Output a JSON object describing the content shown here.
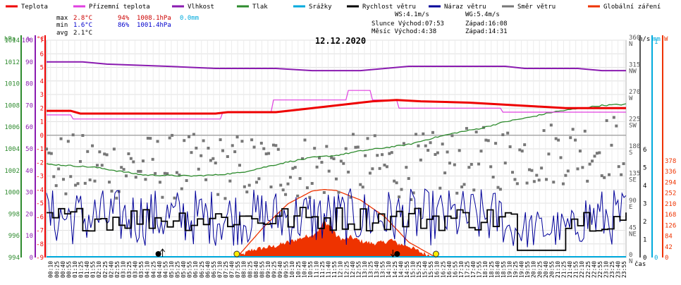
{
  "chart_data": {
    "type": "line",
    "title": "12.12.2020",
    "xlabel": "čas",
    "legend": [
      {
        "name": "Teplota",
        "color": "#ee0000"
      },
      {
        "name": "Přízemní teplota",
        "color": "#e040e0"
      },
      {
        "name": "Vlhkost",
        "color": "#8a1bb0"
      },
      {
        "name": "Tlak",
        "color": "#2e8b2e"
      },
      {
        "name": "Srážky",
        "color": "#00aadd"
      },
      {
        "name": "Rychlost větru",
        "color": "#000000"
      },
      {
        "name": "Náraz větru",
        "color": "#000099"
      },
      {
        "name": "Směr větru",
        "color": "#777777"
      },
      {
        "name": "Globální záření",
        "color": "#ee3300"
      }
    ],
    "stats": {
      "max": {
        "label": "max",
        "temp": "2.8°C",
        "hum": "94%",
        "press": "1008.1hPa",
        "rain": "0.0mm"
      },
      "min": {
        "label": "min",
        "temp": "1.6°C",
        "hum": "86%",
        "press": "1001.4hPa"
      },
      "avg": {
        "label": "avg",
        "temp": "2.1°C"
      }
    },
    "info": {
      "ws": "WS:4.1m/s",
      "wg": "WG:5.4m/s",
      "sun": "Slunce Východ:07:53",
      "sunset": "Západ:16:08",
      "moon": "Měsíc  Východ:4:38",
      "moonset": "Západ:14:31"
    },
    "axes": {
      "pressure": {
        "unit": "hPa",
        "ticks": [
          994,
          996,
          998,
          1000,
          1002,
          1004,
          1006,
          1008,
          1010,
          1012,
          1014
        ]
      },
      "humidity": {
        "unit": "%",
        "ticks": [
          0,
          10,
          20,
          30,
          40,
          50,
          60,
          70,
          80,
          90,
          100
        ]
      },
      "temperature": {
        "unit": "°C",
        "ticks": [
          -9,
          -8,
          -7,
          -6,
          -5,
          -4,
          -3,
          -2,
          -1,
          0,
          1,
          2,
          3,
          4,
          5,
          6,
          7
        ]
      },
      "direction": {
        "unit": "",
        "ticks": [
          {
            "v": 0,
            "t": "0",
            "l": "N"
          },
          {
            "v": 45,
            "t": "45",
            "l": "NE"
          },
          {
            "v": 90,
            "t": "90",
            "l": "E"
          },
          {
            "v": 135,
            "t": "135",
            "l": "SE"
          },
          {
            "v": 180,
            "t": "180",
            "l": "S"
          },
          {
            "v": 225,
            "t": "225",
            "l": "SW"
          },
          {
            "v": 270,
            "t": "270",
            "l": "W"
          },
          {
            "v": 315,
            "t": "315",
            "l": "NW"
          },
          {
            "v": 360,
            "t": "360",
            "l": "N"
          }
        ]
      },
      "wind": {
        "unit": "m/s",
        "ticks": [
          0,
          1,
          2,
          3,
          4,
          5,
          6
        ]
      },
      "rain": {
        "unit": "mm",
        "ticks": [
          0,
          1
        ]
      },
      "radiation": {
        "unit": "W",
        "ticks": [
          0,
          42,
          84,
          126,
          168,
          210,
          252,
          294,
          336,
          378
        ]
      }
    },
    "x_ticks": [
      "00:10",
      "00:25",
      "00:40",
      "00:55",
      "01:10",
      "01:25",
      "01:40",
      "01:55",
      "02:10",
      "02:25",
      "02:40",
      "02:55",
      "03:10",
      "03:25",
      "03:40",
      "03:55",
      "04:10",
      "04:25",
      "04:40",
      "04:55",
      "05:10",
      "05:25",
      "05:40",
      "05:55",
      "06:10",
      "06:25",
      "06:40",
      "06:55",
      "07:10",
      "07:25",
      "07:40",
      "07:55",
      "08:10",
      "08:25",
      "08:40",
      "08:55",
      "09:10",
      "09:25",
      "09:40",
      "09:55",
      "10:10",
      "10:25",
      "10:40",
      "10:55",
      "11:10",
      "11:25",
      "11:40",
      "11:55",
      "12:10",
      "12:25",
      "12:40",
      "12:55",
      "13:10",
      "13:25",
      "13:40",
      "13:55",
      "14:10",
      "14:25",
      "14:40",
      "14:55",
      "15:10",
      "15:25",
      "15:40",
      "15:55",
      "16:10",
      "16:25",
      "16:40",
      "16:55",
      "17:10",
      "17:25",
      "17:40",
      "17:55",
      "18:10",
      "18:25",
      "18:40",
      "18:55",
      "19:10",
      "19:25",
      "19:40",
      "19:55",
      "20:10",
      "20:25",
      "20:40",
      "20:55",
      "21:10",
      "21:25",
      "21:40",
      "21:55",
      "22:10",
      "22:25",
      "22:40",
      "22:55",
      "23:10",
      "23:25",
      "23:40",
      "23:55"
    ],
    "series": {
      "temperature": {
        "x": [
          0,
          1.0,
          1.4,
          4.0,
          7.0,
          7.5,
          9.5,
          10.5,
          12.5,
          13.5,
          14.5,
          15.5,
          17.5,
          20.5,
          21.5,
          24
        ],
        "y": [
          1.8,
          1.8,
          1.6,
          1.6,
          1.6,
          1.7,
          1.7,
          1.9,
          2.3,
          2.5,
          2.6,
          2.5,
          2.4,
          2.1,
          2.0,
          2.0
        ]
      },
      "ground_temperature": {
        "x": [
          0,
          1.0,
          1.1,
          7.2,
          7.3,
          9.3,
          9.4,
          12.4,
          12.5,
          13.4,
          13.5,
          14.5,
          14.6,
          17.8,
          18.8,
          18.9,
          24
        ],
        "y": [
          1.5,
          1.5,
          1.2,
          1.2,
          1.7,
          1.7,
          2.6,
          2.6,
          3.3,
          3.3,
          2.6,
          2.6,
          2.0,
          2.0,
          2.0,
          1.7,
          1.7
        ]
      },
      "humidity": {
        "x": [
          0,
          1.5,
          2.5,
          5.0,
          7.0,
          9.5,
          11.0,
          13.0,
          15.0,
          17.0,
          19.0,
          19.8,
          21.0,
          22.0,
          23.0,
          24
        ],
        "y": [
          90,
          90,
          89,
          88,
          87,
          87,
          86,
          86,
          88,
          88,
          88,
          87,
          87,
          87,
          86,
          86
        ]
      },
      "pressure": {
        "x": [
          0,
          2,
          4,
          6,
          7,
          8,
          9,
          10,
          11,
          12,
          13,
          14,
          15,
          16,
          17,
          18,
          19,
          20,
          21,
          22,
          23,
          24
        ],
        "y": [
          1002.6,
          1002.3,
          1001.6,
          1001.5,
          1001.6,
          1001.8,
          1002.3,
          1002.8,
          1003.2,
          1003.4,
          1003.8,
          1004.1,
          1004.4,
          1005.0,
          1005.5,
          1005.9,
          1006.5,
          1006.9,
          1007.4,
          1007.7,
          1008.0,
          1008.1
        ]
      },
      "wind_speed_mean": 2.1,
      "wind_direction_center": 150,
      "radiation_theoretical": {
        "x": [
          7.88,
          9.0,
          10.0,
          11.0,
          11.5,
          12.0,
          13.0,
          14.0,
          15.0,
          16.13
        ],
        "y": [
          0,
          120,
          210,
          260,
          266,
          262,
          225,
          160,
          60,
          0
        ]
      },
      "radiation": {
        "x": [
          7.9,
          8.5,
          9.5,
          10.0,
          10.5,
          11.0,
          11.3,
          11.5,
          11.8,
          12.0,
          12.3,
          12.6,
          13.0,
          13.5,
          14.0,
          14.3,
          14.5,
          15.0,
          15.5,
          16.0,
          16.1
        ],
        "y": [
          0,
          30,
          45,
          60,
          75,
          90,
          110,
          140,
          120,
          85,
          70,
          80,
          65,
          55,
          60,
          70,
          55,
          45,
          20,
          5,
          0
        ]
      }
    },
    "markers": {
      "sunrise": 7.88,
      "sunset": 16.13,
      "moonrise": 4.63,
      "moonset": 14.52
    }
  }
}
